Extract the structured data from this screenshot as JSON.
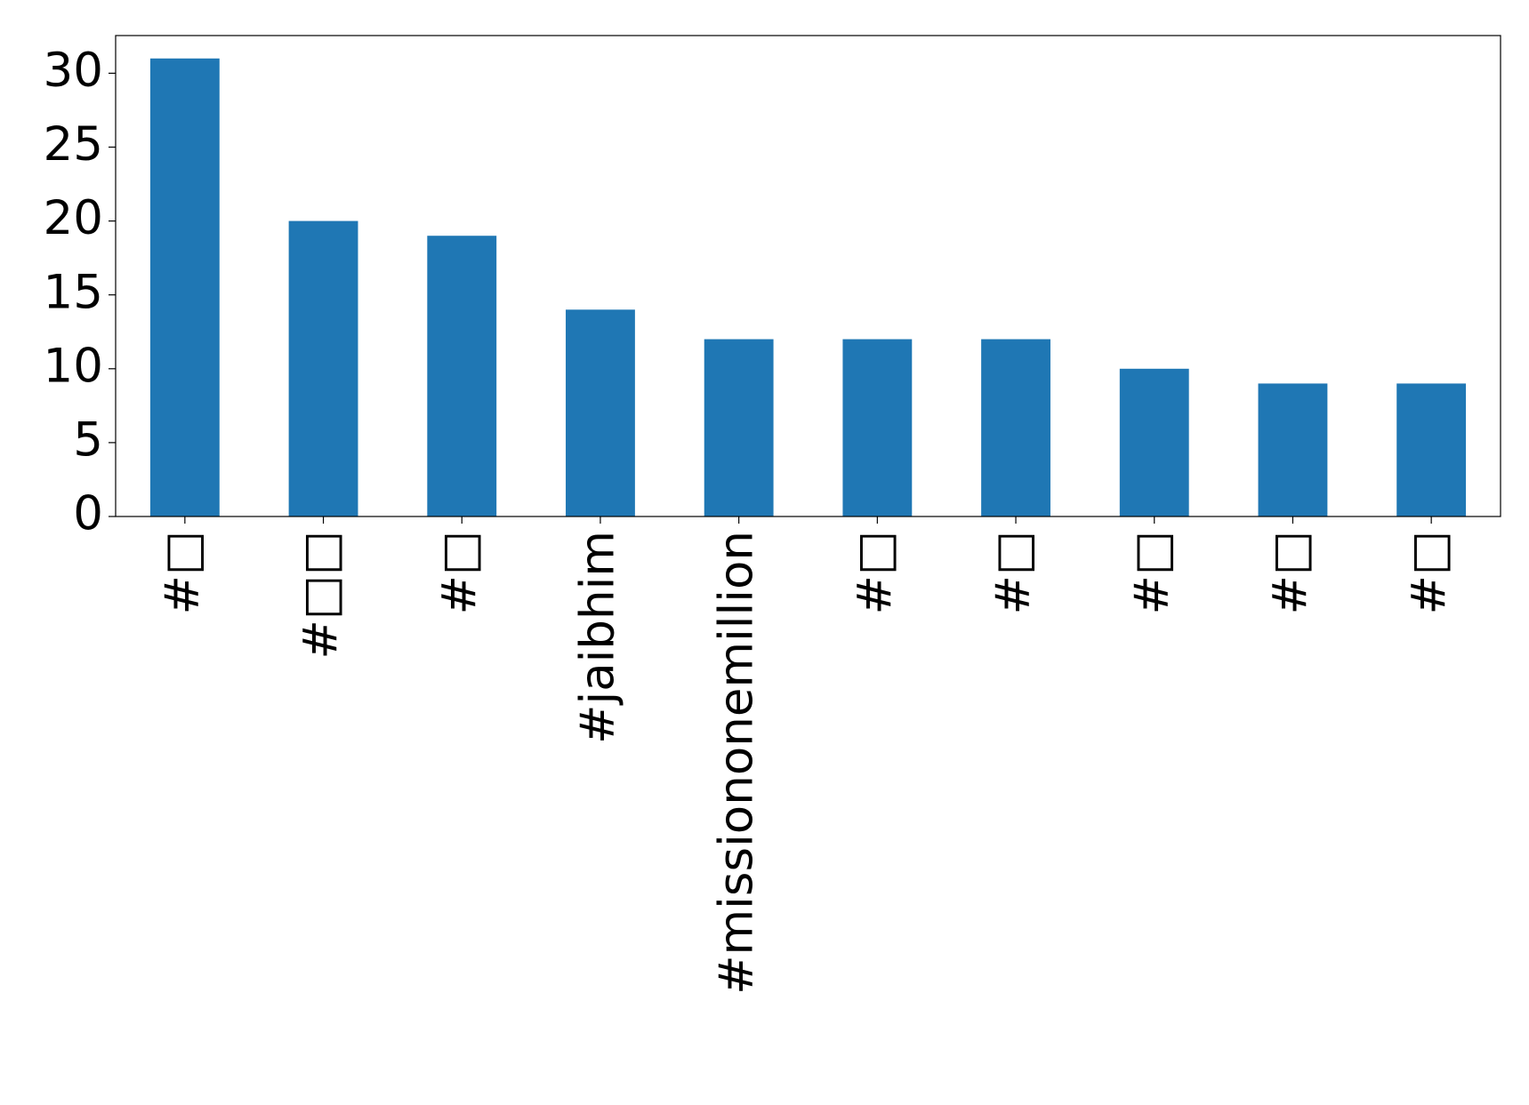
{
  "chart_data": {
    "type": "bar",
    "categories": [
      "#□",
      "#□□",
      "#□",
      "#jaibhim",
      "#missiononemillion",
      "#□",
      "#□",
      "#□",
      "#□",
      "#□"
    ],
    "values": [
      31,
      20,
      19,
      14,
      12,
      12,
      12,
      10,
      9,
      9
    ],
    "color": "#1f77b4",
    "ylim": [
      0,
      32.55
    ],
    "yticks": [
      0,
      5,
      10,
      15,
      20,
      25,
      30
    ],
    "grid": false
  }
}
